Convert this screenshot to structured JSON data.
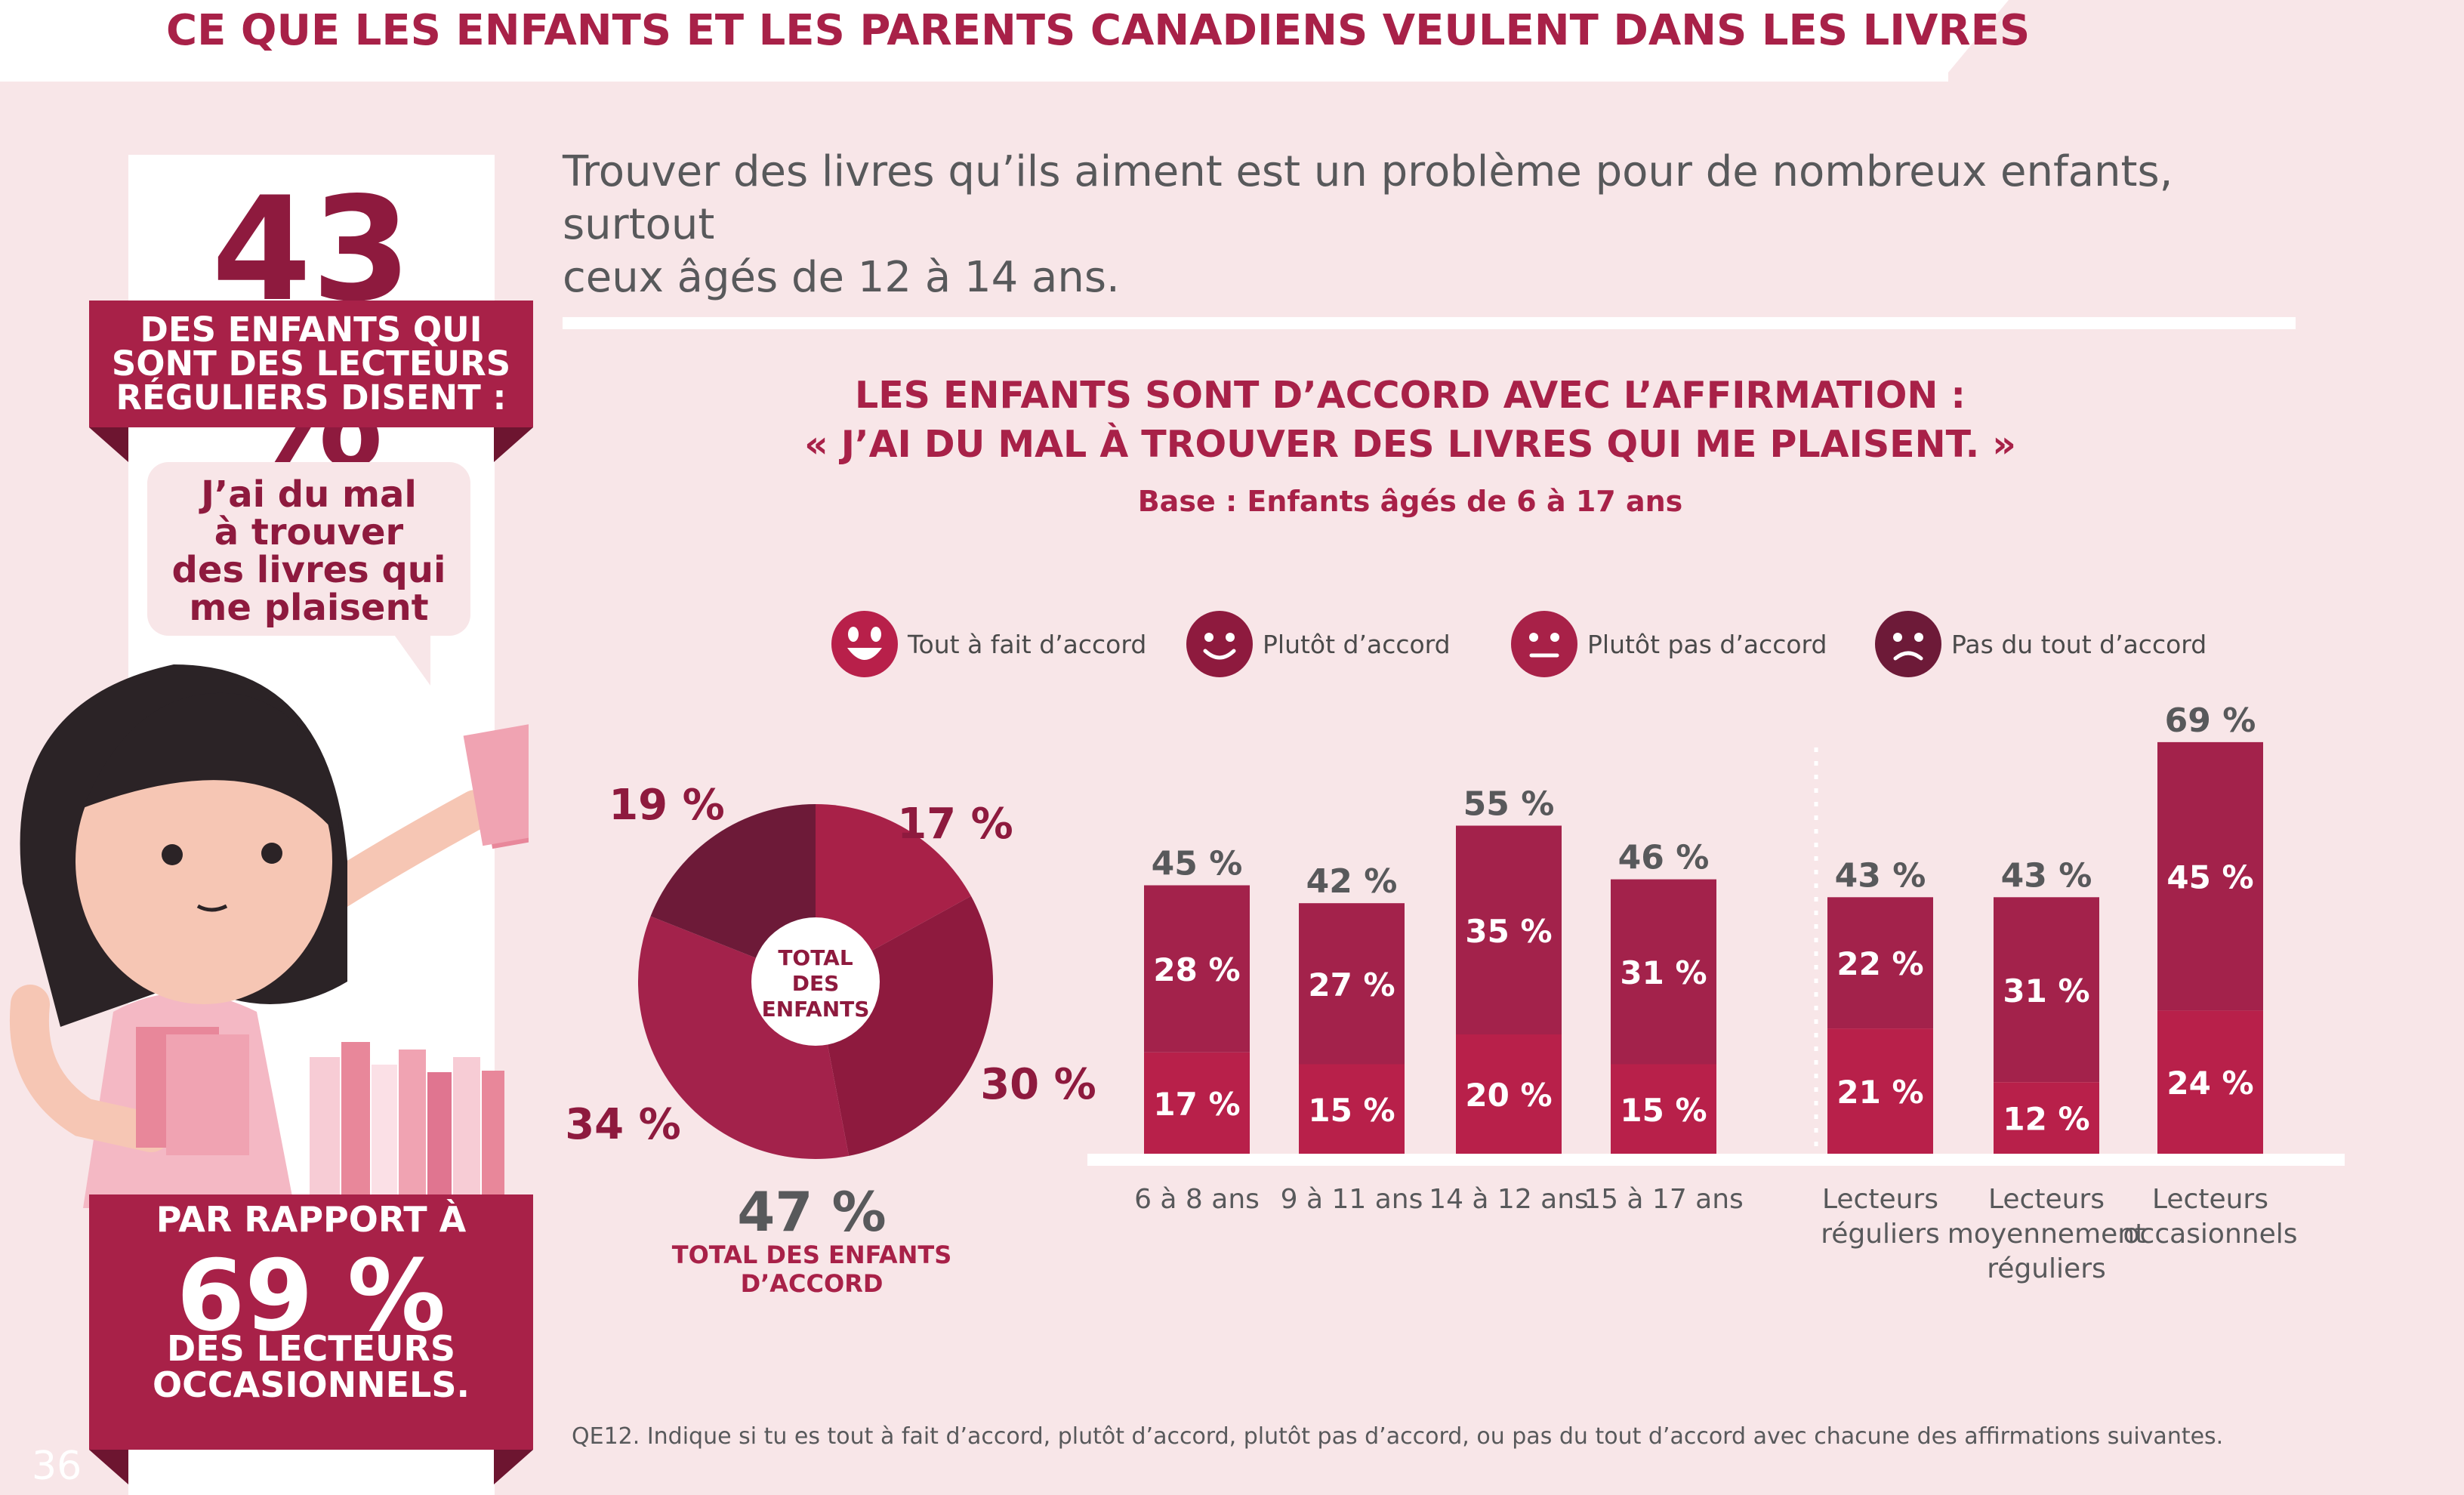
{
  "page_title": "CE QUE LES ENFANTS ET LES PARENTS CANADIENS VEULENT DANS LES LIVRES",
  "sidebar": {
    "stat": "43 %",
    "stat_caption": [
      "DES ENFANTS QUI",
      "SONT DES LECTEURS",
      "RÉGULIERS DISENT :"
    ],
    "quote": [
      "J’ai du mal",
      "à trouver",
      "des livres qui",
      "me plaisent"
    ],
    "compare_intro": "PAR RAPPORT À",
    "compare_stat": "69 %",
    "compare_caption": [
      "DES LECTEURS",
      "OCCASIONNELS."
    ]
  },
  "lede": [
    "Trouver des livres qu’ils aiment est un problème pour de nombreux enfants, surtout",
    "ceux âgés de 12 à 14 ans."
  ],
  "chart_title": [
    "LES ENFANTS SONT D’ACCORD AVEC L’AFFIRMATION :",
    "« J’AI DU MAL À TROUVER DES LIVRES QUI ME PLAISENT. »"
  ],
  "chart_base": "Base : Enfants âgés de 6 à 17 ans",
  "legend": [
    {
      "label": "Tout à fait d’accord",
      "color": "#b8204a",
      "icon": "big-smile-icon"
    },
    {
      "label": "Plutôt d’accord",
      "color": "#8e1a3e",
      "icon": "smile-icon"
    },
    {
      "label": "Plutôt pas d’accord",
      "color": "#a82148",
      "icon": "neutral-face-icon"
    },
    {
      "label": "Pas du tout d’accord",
      "color": "#6d1a38",
      "icon": "frown-icon"
    }
  ],
  "colors": {
    "accent": "#a82148",
    "dark": "#8e1a3e",
    "bar_top": "#a3224b",
    "bar_bottom": "#b8204a",
    "text_gray": "#58595b",
    "background": "#f8e6e8"
  },
  "chart_data": [
    {
      "type": "pie",
      "center_label": [
        "TOTAL",
        "DES",
        "ENFANTS"
      ],
      "slices": [
        {
          "category": "Tout à fait d’accord",
          "value": 17,
          "label": "17 %",
          "color": "#a82148"
        },
        {
          "category": "Plutôt d’accord",
          "value": 30,
          "label": "30 %",
          "color": "#8e1a3e"
        },
        {
          "category": "Plutôt pas d’accord",
          "value": 34,
          "label": "34 %",
          "color": "#a3224b"
        },
        {
          "category": "Pas du tout d’accord",
          "value": 19,
          "label": "19 %",
          "color": "#6d1a38"
        }
      ],
      "total_value": "47 %",
      "total_label": [
        "TOTAL DES ENFANTS",
        "D’ACCORD"
      ]
    },
    {
      "type": "bar",
      "stacked": true,
      "groups": [
        {
          "categories": [
            [
              "6 à 8 ans"
            ],
            [
              "9 à 11 ans"
            ],
            [
              "14 à 12 ans"
            ],
            [
              "15 à 17 ans"
            ]
          ],
          "series": [
            {
              "name": "Tout à fait d’accord",
              "values": [
                17,
                15,
                20,
                15
              ],
              "labels": [
                "17 %",
                "15 %",
                "20 %",
                "15 %"
              ]
            },
            {
              "name": "Plutôt d’accord",
              "values": [
                28,
                27,
                35,
                31
              ],
              "labels": [
                "28 %",
                "27 %",
                "35 %",
                "31 %"
              ]
            }
          ],
          "totals": [
            "45 %",
            "42 %",
            "55 %",
            "46 %"
          ],
          "total_values": [
            45,
            42,
            55,
            46
          ]
        },
        {
          "categories": [
            [
              "Lecteurs",
              "réguliers"
            ],
            [
              "Lecteurs",
              "moyennement",
              "réguliers"
            ],
            [
              "Lecteurs",
              "occasionnels"
            ]
          ],
          "series": [
            {
              "name": "Tout à fait d’accord",
              "values": [
                21,
                12,
                24
              ],
              "labels": [
                "21 %",
                "12 %",
                "24 %"
              ]
            },
            {
              "name": "Plutôt d’accord",
              "values": [
                22,
                31,
                45
              ],
              "labels": [
                "22 %",
                "31 %",
                "45 %"
              ]
            }
          ],
          "totals": [
            "43 %",
            "43 %",
            "69 %"
          ],
          "total_values": [
            43,
            43,
            69
          ]
        }
      ],
      "ylim": [
        0,
        75
      ],
      "grid": false,
      "legend": "top"
    }
  ],
  "footnote": "QE12. Indique si tu es tout à fait d’accord, plutôt d’accord, plutôt pas d’accord, ou pas du tout d’accord avec chacune des affirmations suivantes.",
  "page_number": "36"
}
